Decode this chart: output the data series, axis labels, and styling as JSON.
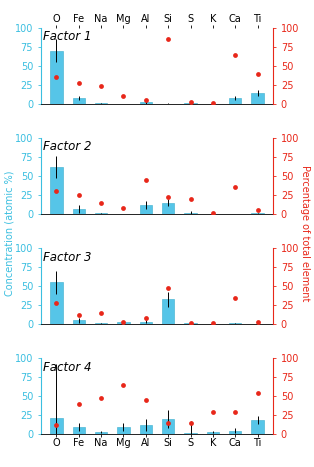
{
  "elements": [
    "O",
    "Fe",
    "Na",
    "Mg",
    "Al",
    "Si",
    "S",
    "K",
    "Ca",
    "Ti"
  ],
  "factors": [
    "Factor 1",
    "Factor 2",
    "Factor 3",
    "Factor 4"
  ],
  "bar_values": [
    [
      70,
      8,
      1,
      0,
      2,
      0,
      1,
      0,
      8,
      15
    ],
    [
      62,
      7,
      1,
      0,
      12,
      15,
      1,
      0,
      0,
      1
    ],
    [
      55,
      5,
      1,
      3,
      3,
      33,
      1,
      0,
      1,
      0
    ],
    [
      22,
      10,
      3,
      10,
      12,
      20,
      2,
      3,
      5,
      19
    ]
  ],
  "bar_errors": [
    [
      15,
      3,
      0.5,
      0.5,
      2,
      1,
      1,
      1,
      3,
      4
    ],
    [
      15,
      5,
      0.5,
      0.5,
      5,
      5,
      3,
      0.5,
      0.5,
      1
    ],
    [
      15,
      3,
      0.5,
      1,
      2,
      10,
      1,
      1,
      0.5,
      0.5
    ],
    [
      70,
      5,
      1,
      5,
      8,
      12,
      15,
      1,
      3,
      5
    ]
  ],
  "dot_values": [
    [
      35,
      27,
      23,
      10,
      5,
      85,
      3,
      1,
      65,
      40
    ],
    [
      30,
      25,
      15,
      8,
      45,
      22,
      20,
      2,
      35,
      5
    ],
    [
      28,
      12,
      15,
      3,
      8,
      48,
      2,
      2,
      35,
      3
    ],
    [
      12,
      40,
      48,
      65,
      45,
      15,
      15,
      30,
      30,
      55
    ]
  ],
  "bar_color": "#56C5E8",
  "dot_color": "#E8271A",
  "bar_edge_color": "#3AAECC",
  "ylabel_left": "Concentration (atomic %)",
  "ylabel_right": "Percentage of total element",
  "ylabel_left_color": "#3BBFE0",
  "ylabel_right_color": "#E8271A",
  "ylim": [
    0,
    100
  ],
  "yticks": [
    0,
    25,
    50,
    75,
    100
  ],
  "background_color": "#ffffff",
  "title_fontsize": 8.5,
  "tick_fontsize": 7,
  "label_fontsize": 7
}
